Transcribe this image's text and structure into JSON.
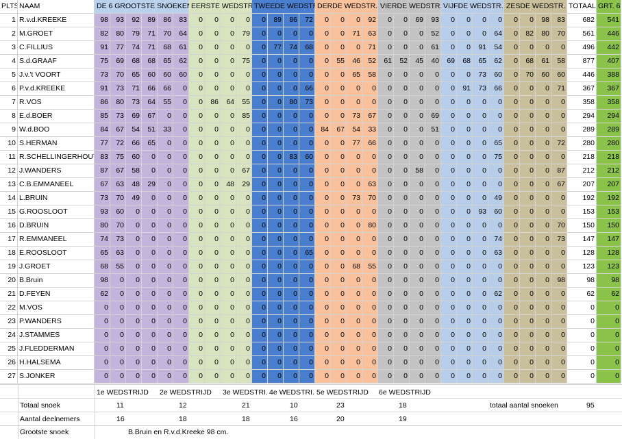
{
  "colors": {
    "top6": "#c2b4da",
    "w1": "#d8e3c0",
    "w2": "#4a7fcf",
    "w3": "#f9c29c",
    "w4": "#c3c3c3",
    "w5": "#b8cde9",
    "w6": "#c9bf9b",
    "totaal": "#ffffff",
    "grt6": "#8bc34a",
    "header_top6": "#b9d1ec"
  },
  "headers": {
    "plts": "PLTS",
    "naam": "NAAM",
    "top6": "DE 6 GROOTSTE SNOEKEN",
    "w1": "EERSTE WEDSTR.",
    "w2": "TWEEDE WEDSTR.",
    "w3": "DERDE WEDSTR.",
    "w4": "VIERDE WEDSTR.",
    "w5": "VIJFDE WEDSTR.",
    "w6": "ZESDE WEDSTR.",
    "totaal": "TOTAAL",
    "grt6": "GRT. 6"
  },
  "rows": [
    {
      "plts": 1,
      "naam": "R.v.d.KREEKE",
      "top6": [
        98,
        93,
        92,
        89,
        86,
        83
      ],
      "w1": [
        0,
        0,
        0,
        0
      ],
      "w2": [
        0,
        89,
        86,
        72
      ],
      "w3": [
        0,
        0,
        0,
        92
      ],
      "w4": [
        0,
        0,
        69,
        93
      ],
      "w5": [
        0,
        0,
        0,
        0
      ],
      "w6": [
        0,
        0,
        98,
        83
      ],
      "totaal": 682,
      "grt6": 541
    },
    {
      "plts": 2,
      "naam": "M.GROET",
      "top6": [
        82,
        80,
        79,
        71,
        70,
        64
      ],
      "w1": [
        0,
        0,
        0,
        79
      ],
      "w2": [
        0,
        0,
        0,
        0
      ],
      "w3": [
        0,
        0,
        71,
        63
      ],
      "w4": [
        0,
        0,
        0,
        52
      ],
      "w5": [
        0,
        0,
        0,
        64
      ],
      "w6": [
        0,
        82,
        80,
        70
      ],
      "totaal": 561,
      "grt6": 446
    },
    {
      "plts": 3,
      "naam": "C.FILLIUS",
      "top6": [
        91,
        77,
        74,
        71,
        68,
        61
      ],
      "w1": [
        0,
        0,
        0,
        0
      ],
      "w2": [
        0,
        77,
        74,
        68
      ],
      "w3": [
        0,
        0,
        0,
        71
      ],
      "w4": [
        0,
        0,
        0,
        61
      ],
      "w5": [
        0,
        0,
        91,
        54
      ],
      "w6": [
        0,
        0,
        0,
        0
      ],
      "totaal": 496,
      "grt6": 442
    },
    {
      "plts": 4,
      "naam": "S.d.GRAAF",
      "top6": [
        75,
        69,
        68,
        68,
        65,
        62
      ],
      "w1": [
        0,
        0,
        0,
        75
      ],
      "w2": [
        0,
        0,
        0,
        0
      ],
      "w3": [
        0,
        55,
        46,
        52
      ],
      "w4": [
        61,
        52,
        45,
        40
      ],
      "w5": [
        69,
        68,
        65,
        62
      ],
      "w6": [
        0,
        68,
        61,
        58
      ],
      "totaal": 877,
      "grt6": 407
    },
    {
      "plts": 5,
      "naam": "J.v.'t VOORT",
      "top6": [
        73,
        70,
        65,
        60,
        60,
        60
      ],
      "w1": [
        0,
        0,
        0,
        0
      ],
      "w2": [
        0,
        0,
        0,
        0
      ],
      "w3": [
        0,
        0,
        65,
        58
      ],
      "w4": [
        0,
        0,
        0,
        0
      ],
      "w5": [
        0,
        0,
        73,
        60
      ],
      "w6": [
        0,
        70,
        60,
        60
      ],
      "totaal": 446,
      "grt6": 388
    },
    {
      "plts": 6,
      "naam": "P.v.d.KREEKE",
      "top6": [
        91,
        73,
        71,
        66,
        66,
        0
      ],
      "w1": [
        0,
        0,
        0,
        0
      ],
      "w2": [
        0,
        0,
        0,
        66
      ],
      "w3": [
        0,
        0,
        0,
        0
      ],
      "w4": [
        0,
        0,
        0,
        0
      ],
      "w5": [
        0,
        91,
        73,
        66
      ],
      "w6": [
        0,
        0,
        0,
        71
      ],
      "totaal": 367,
      "grt6": 367
    },
    {
      "plts": 7,
      "naam": "R.VOS",
      "top6": [
        86,
        80,
        73,
        64,
        55,
        0
      ],
      "w1": [
        0,
        86,
        64,
        55
      ],
      "w2": [
        0,
        0,
        80,
        73
      ],
      "w3": [
        0,
        0,
        0,
        0
      ],
      "w4": [
        0,
        0,
        0,
        0
      ],
      "w5": [
        0,
        0,
        0,
        0
      ],
      "w6": [
        0,
        0,
        0,
        0
      ],
      "totaal": 358,
      "grt6": 358
    },
    {
      "plts": 8,
      "naam": "E.d.BOER",
      "top6": [
        85,
        73,
        69,
        67,
        0,
        0
      ],
      "w1": [
        0,
        0,
        0,
        85
      ],
      "w2": [
        0,
        0,
        0,
        0
      ],
      "w3": [
        0,
        0,
        73,
        67
      ],
      "w4": [
        0,
        0,
        0,
        69
      ],
      "w5": [
        0,
        0,
        0,
        0
      ],
      "w6": [
        0,
        0,
        0,
        0
      ],
      "totaal": 294,
      "grt6": 294
    },
    {
      "plts": 9,
      "naam": "W.d.BOO",
      "top6": [
        84,
        67,
        54,
        51,
        33,
        0
      ],
      "w1": [
        0,
        0,
        0,
        0
      ],
      "w2": [
        0,
        0,
        0,
        0
      ],
      "w3": [
        84,
        67,
        54,
        33
      ],
      "w4": [
        0,
        0,
        0,
        51
      ],
      "w5": [
        0,
        0,
        0,
        0
      ],
      "w6": [
        0,
        0,
        0,
        0
      ],
      "totaal": 289,
      "grt6": 289
    },
    {
      "plts": 10,
      "naam": "S.HERMAN",
      "top6": [
        77,
        72,
        66,
        65,
        0,
        0
      ],
      "w1": [
        0,
        0,
        0,
        0
      ],
      "w2": [
        0,
        0,
        0,
        0
      ],
      "w3": [
        0,
        0,
        77,
        66
      ],
      "w4": [
        0,
        0,
        0,
        0
      ],
      "w5": [
        0,
        0,
        0,
        65
      ],
      "w6": [
        0,
        0,
        0,
        72
      ],
      "totaal": 280,
      "grt6": 280
    },
    {
      "plts": 11,
      "naam": "R.SCHELLINGERHOUT",
      "top6": [
        83,
        75,
        60,
        0,
        0,
        0
      ],
      "w1": [
        0,
        0,
        0,
        0
      ],
      "w2": [
        0,
        0,
        83,
        60
      ],
      "w3": [
        0,
        0,
        0,
        0
      ],
      "w4": [
        0,
        0,
        0,
        0
      ],
      "w5": [
        0,
        0,
        0,
        75
      ],
      "w6": [
        0,
        0,
        0,
        0
      ],
      "totaal": 218,
      "grt6": 218
    },
    {
      "plts": 12,
      "naam": "J.WANDERS",
      "top6": [
        87,
        67,
        58,
        0,
        0,
        0
      ],
      "w1": [
        0,
        0,
        0,
        67
      ],
      "w2": [
        0,
        0,
        0,
        0
      ],
      "w3": [
        0,
        0,
        0,
        0
      ],
      "w4": [
        0,
        0,
        58,
        0
      ],
      "w5": [
        0,
        0,
        0,
        0
      ],
      "w6": [
        0,
        0,
        0,
        87
      ],
      "totaal": 212,
      "grt6": 212
    },
    {
      "plts": 13,
      "naam": "C.B.EMMANEEL",
      "top6": [
        67,
        63,
        48,
        29,
        0,
        0
      ],
      "w1": [
        0,
        0,
        48,
        29
      ],
      "w2": [
        0,
        0,
        0,
        0
      ],
      "w3": [
        0,
        0,
        0,
        63
      ],
      "w4": [
        0,
        0,
        0,
        0
      ],
      "w5": [
        0,
        0,
        0,
        0
      ],
      "w6": [
        0,
        0,
        0,
        67
      ],
      "totaal": 207,
      "grt6": 207
    },
    {
      "plts": 14,
      "naam": "L.BRUIN",
      "top6": [
        73,
        70,
        49,
        0,
        0,
        0
      ],
      "w1": [
        0,
        0,
        0,
        0
      ],
      "w2": [
        0,
        0,
        0,
        0
      ],
      "w3": [
        0,
        0,
        73,
        70
      ],
      "w4": [
        0,
        0,
        0,
        0
      ],
      "w5": [
        0,
        0,
        0,
        49
      ],
      "w6": [
        0,
        0,
        0,
        0
      ],
      "totaal": 192,
      "grt6": 192
    },
    {
      "plts": 15,
      "naam": "G.ROOSLOOT",
      "top6": [
        93,
        60,
        0,
        0,
        0,
        0
      ],
      "w1": [
        0,
        0,
        0,
        0
      ],
      "w2": [
        0,
        0,
        0,
        0
      ],
      "w3": [
        0,
        0,
        0,
        0
      ],
      "w4": [
        0,
        0,
        0,
        0
      ],
      "w5": [
        0,
        0,
        93,
        60
      ],
      "w6": [
        0,
        0,
        0,
        0
      ],
      "totaal": 153,
      "grt6": 153
    },
    {
      "plts": 16,
      "naam": "D.BRUIN",
      "top6": [
        80,
        70,
        0,
        0,
        0,
        0
      ],
      "w1": [
        0,
        0,
        0,
        0
      ],
      "w2": [
        0,
        0,
        0,
        0
      ],
      "w3": [
        0,
        0,
        0,
        80
      ],
      "w4": [
        0,
        0,
        0,
        0
      ],
      "w5": [
        0,
        0,
        0,
        0
      ],
      "w6": [
        0,
        0,
        0,
        70
      ],
      "totaal": 150,
      "grt6": 150
    },
    {
      "plts": 17,
      "naam": "R.EMMANEEL",
      "top6": [
        74,
        73,
        0,
        0,
        0,
        0
      ],
      "w1": [
        0,
        0,
        0,
        0
      ],
      "w2": [
        0,
        0,
        0,
        0
      ],
      "w3": [
        0,
        0,
        0,
        0
      ],
      "w4": [
        0,
        0,
        0,
        0
      ],
      "w5": [
        0,
        0,
        0,
        74
      ],
      "w6": [
        0,
        0,
        0,
        73
      ],
      "totaal": 147,
      "grt6": 147
    },
    {
      "plts": 18,
      "naam": "E.ROOSLOOT",
      "top6": [
        65,
        63,
        0,
        0,
        0,
        0
      ],
      "w1": [
        0,
        0,
        0,
        0
      ],
      "w2": [
        0,
        0,
        0,
        65
      ],
      "w3": [
        0,
        0,
        0,
        0
      ],
      "w4": [
        0,
        0,
        0,
        0
      ],
      "w5": [
        0,
        0,
        0,
        63
      ],
      "w6": [
        0,
        0,
        0,
        0
      ],
      "totaal": 128,
      "grt6": 128
    },
    {
      "plts": 19,
      "naam": "J.GROET",
      "top6": [
        68,
        55,
        0,
        0,
        0,
        0
      ],
      "w1": [
        0,
        0,
        0,
        0
      ],
      "w2": [
        0,
        0,
        0,
        0
      ],
      "w3": [
        0,
        0,
        68,
        55
      ],
      "w4": [
        0,
        0,
        0,
        0
      ],
      "w5": [
        0,
        0,
        0,
        0
      ],
      "w6": [
        0,
        0,
        0,
        0
      ],
      "totaal": 123,
      "grt6": 123
    },
    {
      "plts": 20,
      "naam": "B.Bruin",
      "top6": [
        98,
        0,
        0,
        0,
        0,
        0
      ],
      "w1": [
        0,
        0,
        0,
        0
      ],
      "w2": [
        0,
        0,
        0,
        0
      ],
      "w3": [
        0,
        0,
        0,
        0
      ],
      "w4": [
        0,
        0,
        0,
        0
      ],
      "w5": [
        0,
        0,
        0,
        0
      ],
      "w6": [
        0,
        0,
        0,
        98
      ],
      "totaal": 98,
      "grt6": 98
    },
    {
      "plts": 21,
      "naam": "D.FEYEN",
      "top6": [
        62,
        0,
        0,
        0,
        0,
        0
      ],
      "w1": [
        0,
        0,
        0,
        0
      ],
      "w2": [
        0,
        0,
        0,
        0
      ],
      "w3": [
        0,
        0,
        0,
        0
      ],
      "w4": [
        0,
        0,
        0,
        0
      ],
      "w5": [
        0,
        0,
        0,
        62
      ],
      "w6": [
        0,
        0,
        0,
        0
      ],
      "totaal": 62,
      "grt6": 62
    },
    {
      "plts": 22,
      "naam": "M.VOS",
      "top6": [
        0,
        0,
        0,
        0,
        0,
        0
      ],
      "w1": [
        0,
        0,
        0,
        0
      ],
      "w2": [
        0,
        0,
        0,
        0
      ],
      "w3": [
        0,
        0,
        0,
        0
      ],
      "w4": [
        0,
        0,
        0,
        0
      ],
      "w5": [
        0,
        0,
        0,
        0
      ],
      "w6": [
        0,
        0,
        0,
        0
      ],
      "totaal": 0,
      "grt6": 0
    },
    {
      "plts": 23,
      "naam": "P.WANDERS",
      "top6": [
        0,
        0,
        0,
        0,
        0,
        0
      ],
      "w1": [
        0,
        0,
        0,
        0
      ],
      "w2": [
        0,
        0,
        0,
        0
      ],
      "w3": [
        0,
        0,
        0,
        0
      ],
      "w4": [
        0,
        0,
        0,
        0
      ],
      "w5": [
        0,
        0,
        0,
        0
      ],
      "w6": [
        0,
        0,
        0,
        0
      ],
      "totaal": 0,
      "grt6": 0
    },
    {
      "plts": 24,
      "naam": "J.STAMMES",
      "top6": [
        0,
        0,
        0,
        0,
        0,
        0
      ],
      "w1": [
        0,
        0,
        0,
        0
      ],
      "w2": [
        0,
        0,
        0,
        0
      ],
      "w3": [
        0,
        0,
        0,
        0
      ],
      "w4": [
        0,
        0,
        0,
        0
      ],
      "w5": [
        0,
        0,
        0,
        0
      ],
      "w6": [
        0,
        0,
        0,
        0
      ],
      "totaal": 0,
      "grt6": 0
    },
    {
      "plts": 25,
      "naam": "J.FLEDDERMAN",
      "top6": [
        0,
        0,
        0,
        0,
        0,
        0
      ],
      "w1": [
        0,
        0,
        0,
        0
      ],
      "w2": [
        0,
        0,
        0,
        0
      ],
      "w3": [
        0,
        0,
        0,
        0
      ],
      "w4": [
        0,
        0,
        0,
        0
      ],
      "w5": [
        0,
        0,
        0,
        0
      ],
      "w6": [
        0,
        0,
        0,
        0
      ],
      "totaal": 0,
      "grt6": 0
    },
    {
      "plts": 26,
      "naam": "H.HALSEMA",
      "top6": [
        0,
        0,
        0,
        0,
        0,
        0
      ],
      "w1": [
        0,
        0,
        0,
        0
      ],
      "w2": [
        0,
        0,
        0,
        0
      ],
      "w3": [
        0,
        0,
        0,
        0
      ],
      "w4": [
        0,
        0,
        0,
        0
      ],
      "w5": [
        0,
        0,
        0,
        0
      ],
      "w6": [
        0,
        0,
        0,
        0
      ],
      "totaal": 0,
      "grt6": 0
    },
    {
      "plts": 27,
      "naam": "S.JONKER",
      "top6": [
        0,
        0,
        0,
        0,
        0,
        0
      ],
      "w1": [
        0,
        0,
        0,
        0
      ],
      "w2": [
        0,
        0,
        0,
        0
      ],
      "w3": [
        0,
        0,
        0,
        0
      ],
      "w4": [
        0,
        0,
        0,
        0
      ],
      "w5": [
        0,
        0,
        0,
        0
      ],
      "w6": [
        0,
        0,
        0,
        0
      ],
      "totaal": 0,
      "grt6": 0
    }
  ],
  "summary": {
    "wedstrijd_labels": [
      "1e WEDSTRIJD",
      "2e WEDSTRIJD",
      "3e WEDSTRI.",
      "4e WEDSTRI.",
      "5e WEDSTRIJD",
      "6e WEDSTRIJD"
    ],
    "totaal_snoek_label": "Totaal snoek",
    "totaal_snoek": [
      "11",
      "12",
      "21",
      "10",
      "23",
      "18"
    ],
    "aantal_deelnemers_label": "Aantal deelnemers",
    "aantal_deelnemers": [
      "16",
      "18",
      "18",
      "16",
      "20",
      "19"
    ],
    "grootste_snoek_label": "Grootste snoek",
    "grootste_snoek_value": "B.Bruin en R.v.d.Kreeke 98 cm.",
    "totaal_aantal_label": "totaal aantal snoeken",
    "totaal_aantal_value": "95"
  }
}
